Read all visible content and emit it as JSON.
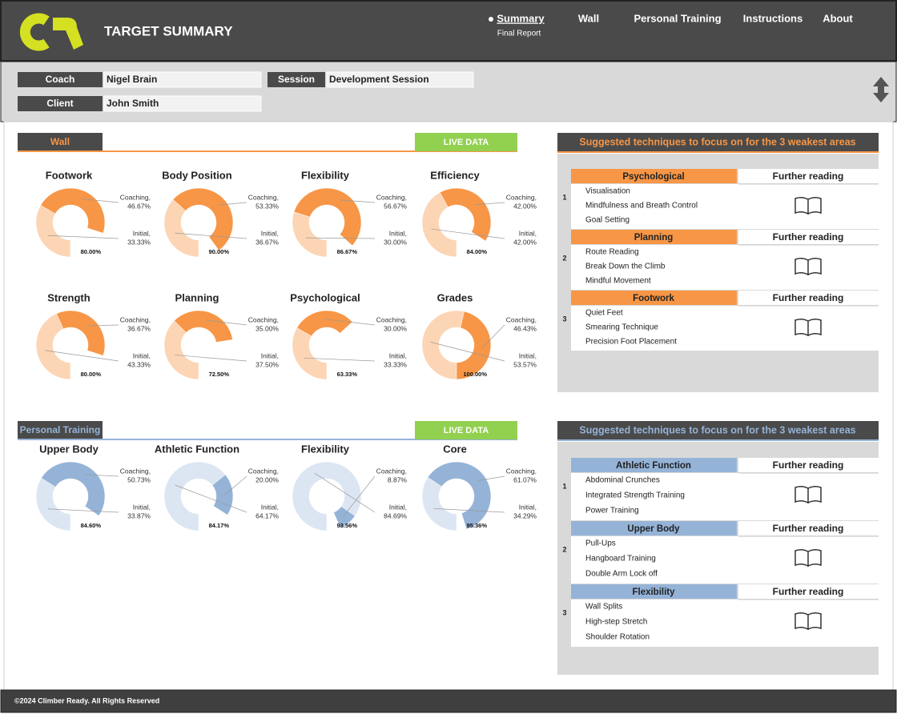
{
  "header": {
    "title": "TARGET SUMMARY",
    "nav": [
      "Summary",
      "Wall",
      "Personal Training",
      "Instructions",
      "About"
    ],
    "nav_note": "Final Report"
  },
  "info": {
    "coach_label": "Coach",
    "coach": "Nigel Brain",
    "client_label": "Client",
    "client": "John Smith",
    "session_label": "Session",
    "session": "Development Session"
  },
  "sections": [
    {
      "label": "Wall",
      "live": "LIVE DATA",
      "color": "#f79646",
      "suggest_title": "Suggested techniques to focus on for the 3 weakest areas",
      "further": "Further reading",
      "groups": [
        {
          "number": 1,
          "category": "Psychological",
          "items": [
            "Visualisation",
            "Mindfulness and Breath Control",
            "Goal Setting"
          ]
        },
        {
          "number": 2,
          "category": "Planning",
          "items": [
            "Route Reading",
            "Break Down the Climb",
            "Mindful Movement"
          ]
        },
        {
          "number": 3,
          "category": "Footwork",
          "items": [
            "Quiet Feet",
            "Smearing Technique",
            "Precision Foot Placement"
          ]
        }
      ]
    },
    {
      "label": "Personal Training",
      "live": "LIVE DATA",
      "color": "#95b3d7",
      "suggest_title": "Suggested techniques to focus on for the 3 weakest areas",
      "further": "Further reading",
      "groups": [
        {
          "number": 1,
          "category": "Athletic Function",
          "items": [
            "Abdominal Crunches",
            "Integrated Strength Training",
            "Power Training"
          ]
        },
        {
          "number": 2,
          "category": "Upper Body",
          "items": [
            "Pull-Ups",
            "Hangboard Training",
            "Double Arm Lock off"
          ]
        },
        {
          "number": 3,
          "category": "Flexibility",
          "items": [
            "Wall Splits",
            "High-step Stretch",
            "Shoulder Rotation"
          ]
        }
      ]
    }
  ],
  "chart_data": [
    {
      "type": "pie",
      "title": "Footwork",
      "categories": [
        "Coaching,",
        "Initial,"
      ],
      "values": [
        46.67,
        33.33
      ],
      "value_labels": [
        "46.67%",
        "33.33%"
      ],
      "colors": [
        "#f79646",
        "#fcd5b5"
      ],
      "total_label": "80.00%"
    },
    {
      "type": "pie",
      "title": "Body Position",
      "categories": [
        "Coaching,",
        "Initial,"
      ],
      "values": [
        53.33,
        36.67
      ],
      "value_labels": [
        "53.33%",
        "36.67%"
      ],
      "colors": [
        "#f79646",
        "#fcd5b5"
      ],
      "total_label": "90.00%"
    },
    {
      "type": "pie",
      "title": "Flexibility",
      "categories": [
        "Coaching,",
        "Initial,"
      ],
      "values": [
        56.67,
        30.0
      ],
      "value_labels": [
        "56.67%",
        "30.00%"
      ],
      "colors": [
        "#f79646",
        "#fcd5b5"
      ],
      "total_label": "86.67%"
    },
    {
      "type": "pie",
      "title": "Efficiency",
      "categories": [
        "Coaching,",
        "Initial,"
      ],
      "values": [
        42.0,
        42.0
      ],
      "value_labels": [
        "42.00%",
        "42.00%"
      ],
      "colors": [
        "#f79646",
        "#fcd5b5"
      ],
      "total_label": "84.00%"
    },
    {
      "type": "pie",
      "title": "Strength",
      "categories": [
        "Coaching,",
        "Initial,"
      ],
      "values": [
        36.67,
        43.33
      ],
      "value_labels": [
        "36.67%",
        "43.33%"
      ],
      "colors": [
        "#f79646",
        "#fcd5b5"
      ],
      "total_label": "80.00%"
    },
    {
      "type": "pie",
      "title": "Planning",
      "categories": [
        "Coaching,",
        "Initial,"
      ],
      "values": [
        35.0,
        37.5
      ],
      "value_labels": [
        "35.00%",
        "37.50%"
      ],
      "colors": [
        "#f79646",
        "#fcd5b5"
      ],
      "total_label": "72.50%"
    },
    {
      "type": "pie",
      "title": "Psychological",
      "categories": [
        "Coaching,",
        "Initial,"
      ],
      "values": [
        30.0,
        33.33
      ],
      "value_labels": [
        "30.00%",
        "33.33%"
      ],
      "colors": [
        "#f79646",
        "#fcd5b5"
      ],
      "total_label": "63.33%"
    },
    {
      "type": "pie",
      "title": "Grades",
      "categories": [
        "Coaching,",
        "Initial,"
      ],
      "values": [
        46.43,
        53.57
      ],
      "value_labels": [
        "46.43%",
        "53.57%"
      ],
      "colors": [
        "#f79646",
        "#fcd5b5"
      ],
      "total_label": "100.00%"
    },
    {
      "type": "pie",
      "title": "Upper Body",
      "categories": [
        "Coaching,",
        "Initial,"
      ],
      "values": [
        50.73,
        33.87
      ],
      "value_labels": [
        "50.73%",
        "33.87%"
      ],
      "colors": [
        "#95b3d7",
        "#dce6f2"
      ],
      "total_label": "84.60%"
    },
    {
      "type": "pie",
      "title": "Athletic Function",
      "categories": [
        "Coaching,",
        "Initial,"
      ],
      "values": [
        20.0,
        64.17
      ],
      "value_labels": [
        "20.00%",
        "64.17%"
      ],
      "colors": [
        "#95b3d7",
        "#dce6f2"
      ],
      "total_label": "84.17%"
    },
    {
      "type": "pie",
      "title": "Flexibility",
      "categories": [
        "Coaching,",
        "Initial,"
      ],
      "values": [
        8.87,
        84.69
      ],
      "value_labels": [
        "8.87%",
        "84.69%"
      ],
      "colors": [
        "#95b3d7",
        "#dce6f2"
      ],
      "total_label": "93.56%"
    },
    {
      "type": "pie",
      "title": "Core",
      "categories": [
        "Coaching,",
        "Initial,"
      ],
      "values": [
        61.07,
        34.29
      ],
      "value_labels": [
        "61.07%",
        "34.29%"
      ],
      "colors": [
        "#95b3d7",
        "#dce6f2"
      ],
      "total_label": "95.36%"
    }
  ],
  "footer": "©2024 Climber Ready. All Rights Reserved"
}
